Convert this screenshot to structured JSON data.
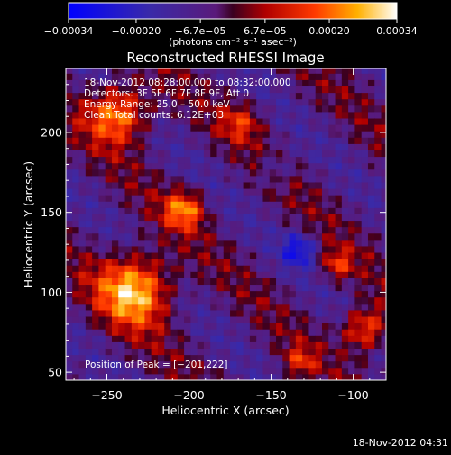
{
  "chart_data": {
    "type": "heatmap",
    "title": "Reconstructed RHESSI Image",
    "xlabel": "Heliocentric X (arcsec)",
    "ylabel": "Heliocentric Y (arcsec)",
    "xlim": [
      -275,
      -80
    ],
    "ylim": [
      45,
      240
    ],
    "xticks": [
      -250,
      -200,
      -150,
      -100
    ],
    "xtick_labels": [
      "−250",
      "−200",
      "−150",
      "−100"
    ],
    "yticks": [
      50,
      100,
      150,
      200
    ],
    "ytick_labels": [
      "50",
      "100",
      "150",
      "200"
    ],
    "colorbar": {
      "ticks": [
        -0.00034,
        -0.0002,
        -6.7e-05,
        6.7e-05,
        0.0002,
        0.00034
      ],
      "tick_labels": [
        "−0.00034",
        "−0.00020",
        "−6.7e−05",
        "6.7e−05",
        "0.00020",
        "0.00034"
      ],
      "range": [
        -0.00034,
        0.00034
      ],
      "unit_label": "(photons cm⁻² s⁻¹ asec⁻²)"
    },
    "annotations": [
      "18-Nov-2012 08:28:00.000 to 08:32:00.000",
      "Detectors: 3F 5F 6F 7F 8F 9F, Att 0",
      "Energy Range: 25.0 – 50.0 keV",
      "Clean    Total counts: 6.12E+03"
    ],
    "peak_label": "Position of Peak = [−201,222]",
    "peak_position": [
      -201,
      222
    ],
    "hotspots": [
      {
        "x": -235,
        "y": 100,
        "radius": 22,
        "value": 0.00034
      },
      {
        "x": -245,
        "y": 210,
        "radius": 18,
        "value": 0.0003
      },
      {
        "x": -205,
        "y": 150,
        "radius": 12,
        "value": 0.00025
      },
      {
        "x": -170,
        "y": 205,
        "radius": 12,
        "value": 0.00015
      },
      {
        "x": -95,
        "y": 75,
        "radius": 14,
        "value": 0.00025
      },
      {
        "x": -112,
        "y": 115,
        "radius": 10,
        "value": 0.00018
      },
      {
        "x": -135,
        "y": 55,
        "radius": 10,
        "value": 0.00015
      },
      {
        "x": -135,
        "y": 125,
        "radius": 10,
        "value": -0.0002
      },
      {
        "x": -150,
        "y": 175,
        "radius": 10,
        "value": -0.0001
      }
    ],
    "grid": false
  },
  "footer": {
    "timestamp": "18-Nov-2012 04:31"
  },
  "colors": {
    "background": "#000000",
    "axes": "#ffffff",
    "text": "#ffffff"
  }
}
